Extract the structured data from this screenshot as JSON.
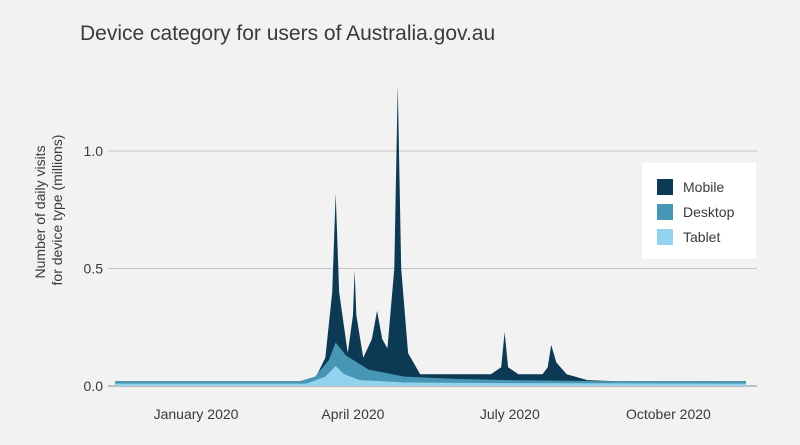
{
  "chart_data": {
    "type": "area",
    "title": "Device category for users of Australia.gov.au",
    "ylabel": [
      "Number of daily visits",
      "for device type (millions)"
    ],
    "xlabel": "",
    "x_range": [
      "2019-11-15",
      "2020-11-15"
    ],
    "ylim": [
      0,
      1.3
    ],
    "y_ticks": [
      {
        "value": 0.0,
        "label": "0.0"
      },
      {
        "value": 0.5,
        "label": "0.5"
      },
      {
        "value": 1.0,
        "label": "1.0"
      }
    ],
    "x_ticks": [
      {
        "date": "2020-01-01",
        "label": "January 2020"
      },
      {
        "date": "2020-04-01",
        "label": "April 2020"
      },
      {
        "date": "2020-07-01",
        "label": "July 2020"
      },
      {
        "date": "2020-10-01",
        "label": "October 2020"
      }
    ],
    "grid": true,
    "stacked": false,
    "legend_position": "right",
    "series": [
      {
        "name": "Mobile",
        "color": "#0c3a54",
        "points": [
          [
            "2019-11-15",
            0.02
          ],
          [
            "2020-03-01",
            0.02
          ],
          [
            "2020-03-10",
            0.03
          ],
          [
            "2020-03-16",
            0.12
          ],
          [
            "2020-03-20",
            0.4
          ],
          [
            "2020-03-22",
            0.82
          ],
          [
            "2020-03-24",
            0.4
          ],
          [
            "2020-03-29",
            0.14
          ],
          [
            "2020-04-01",
            0.3
          ],
          [
            "2020-04-02",
            0.49
          ],
          [
            "2020-04-03",
            0.3
          ],
          [
            "2020-04-07",
            0.12
          ],
          [
            "2020-04-12",
            0.2
          ],
          [
            "2020-04-15",
            0.32
          ],
          [
            "2020-04-18",
            0.2
          ],
          [
            "2020-04-21",
            0.16
          ],
          [
            "2020-04-25",
            0.5
          ],
          [
            "2020-04-27",
            1.28
          ],
          [
            "2020-04-29",
            0.5
          ],
          [
            "2020-05-03",
            0.14
          ],
          [
            "2020-05-10",
            0.05
          ],
          [
            "2020-06-20",
            0.05
          ],
          [
            "2020-06-26",
            0.08
          ],
          [
            "2020-06-28",
            0.23
          ],
          [
            "2020-06-30",
            0.08
          ],
          [
            "2020-07-06",
            0.05
          ],
          [
            "2020-07-20",
            0.05
          ],
          [
            "2020-07-23",
            0.08
          ],
          [
            "2020-07-25",
            0.175
          ],
          [
            "2020-07-28",
            0.1
          ],
          [
            "2020-08-03",
            0.05
          ],
          [
            "2020-08-15",
            0.025
          ],
          [
            "2020-09-01",
            0.02
          ],
          [
            "2020-11-15",
            0.02
          ]
        ]
      },
      {
        "name": "Desktop",
        "color": "#4796b4",
        "points": [
          [
            "2019-11-15",
            0.02
          ],
          [
            "2020-03-01",
            0.02
          ],
          [
            "2020-03-10",
            0.04
          ],
          [
            "2020-03-18",
            0.11
          ],
          [
            "2020-03-22",
            0.185
          ],
          [
            "2020-03-28",
            0.13
          ],
          [
            "2020-04-10",
            0.07
          ],
          [
            "2020-05-01",
            0.04
          ],
          [
            "2020-06-01",
            0.03
          ],
          [
            "2020-07-01",
            0.025
          ],
          [
            "2020-09-01",
            0.02
          ],
          [
            "2020-11-15",
            0.02
          ]
        ]
      },
      {
        "name": "Tablet",
        "color": "#93d3ee",
        "points": [
          [
            "2019-11-15",
            0.01
          ],
          [
            "2020-03-05",
            0.01
          ],
          [
            "2020-03-16",
            0.04
          ],
          [
            "2020-03-22",
            0.085
          ],
          [
            "2020-03-27",
            0.05
          ],
          [
            "2020-04-05",
            0.025
          ],
          [
            "2020-05-01",
            0.015
          ],
          [
            "2020-07-01",
            0.012
          ],
          [
            "2020-11-15",
            0.01
          ]
        ]
      }
    ]
  }
}
